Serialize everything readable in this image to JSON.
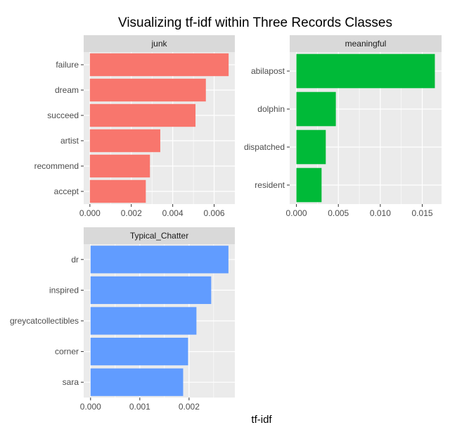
{
  "chart_data": {
    "type": "bar",
    "orientation": "horizontal",
    "title": "Visualizing tf-idf within Three Records Classes",
    "xlabel": "tf-idf",
    "ylabel": "",
    "grid": true,
    "legend": "none",
    "panels": [
      {
        "name": "junk",
        "color": "#F8766D",
        "categories": [
          "failure",
          "dream",
          "succeed",
          "artist",
          "recommend",
          "accept"
        ],
        "values": [
          0.0067,
          0.0056,
          0.0051,
          0.0034,
          0.0029,
          0.0027
        ],
        "xlim": [
          -0.0003,
          0.007
        ],
        "ticks": [
          0.0,
          0.002,
          0.004,
          0.006
        ],
        "tick_labels": [
          "0.000",
          "0.002",
          "0.004",
          "0.006"
        ]
      },
      {
        "name": "meaningful",
        "color": "#00BA38",
        "categories": [
          "abilapost",
          "dolphin",
          "dispatched",
          "resident"
        ],
        "values": [
          0.0165,
          0.0047,
          0.0035,
          0.003
        ],
        "xlim": [
          -0.0008,
          0.0173
        ],
        "ticks": [
          0.0,
          0.005,
          0.01,
          0.015
        ],
        "tick_labels": [
          "0.000",
          "0.005",
          "0.010",
          "0.015"
        ]
      },
      {
        "name": "Typical_Chatter",
        "color": "#619CFF",
        "categories": [
          "dr",
          "inspired",
          "greycatcollectibles",
          "corner",
          "sara"
        ],
        "values": [
          0.0028,
          0.00245,
          0.00215,
          0.00198,
          0.00188
        ],
        "xlim": [
          -0.00014,
          0.00293
        ],
        "ticks": [
          0.0,
          0.001,
          0.002
        ],
        "tick_labels": [
          "0.000",
          "0.001",
          "0.002"
        ]
      }
    ]
  }
}
